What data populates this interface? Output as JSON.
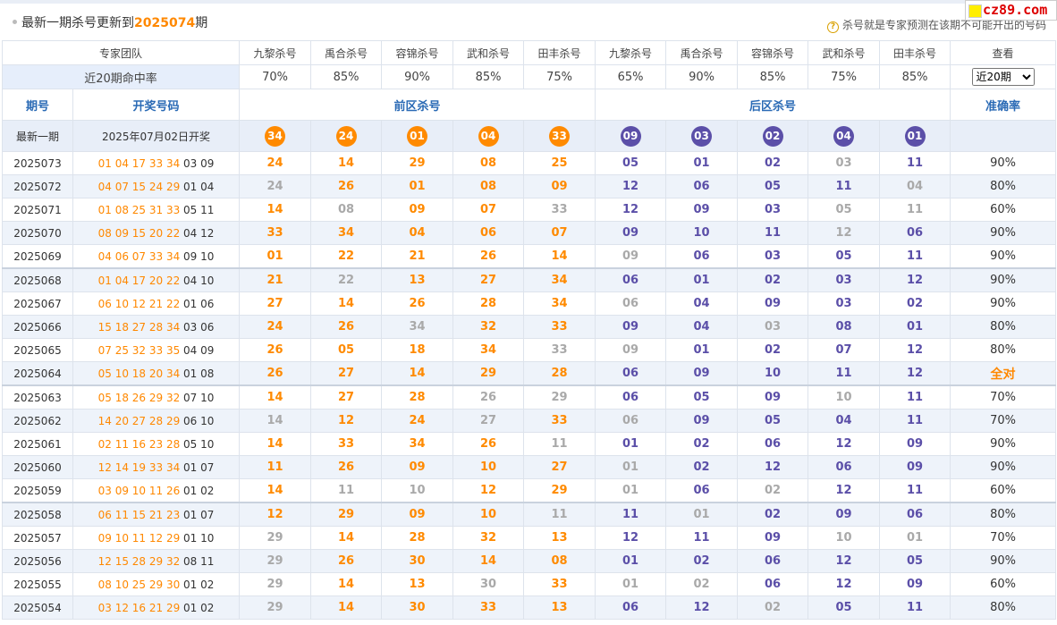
{
  "header": {
    "title_prefix": "最新一期杀号更新到",
    "issue": "2025074",
    "title_suffix": "期",
    "note_icon": "question-circle-icon",
    "note": "杀号就是专家预测在该期不可能开出的号码",
    "logo_text": "cz89.com"
  },
  "experts_label": "专家团队",
  "experts": [
    "九黎杀号",
    "禹合杀号",
    "容锦杀号",
    "武和杀号",
    "田丰杀号",
    "九黎杀号",
    "禹合杀号",
    "容锦杀号",
    "武和杀号",
    "田丰杀号"
  ],
  "view_label": "查看",
  "rate_label": "近20期命中率",
  "rates": [
    "70%",
    "85%",
    "90%",
    "85%",
    "75%",
    "65%",
    "90%",
    "85%",
    "75%",
    "85%"
  ],
  "period_select": "近20期",
  "columns": {
    "issue": "期号",
    "draw": "开奖号码",
    "front": "前区杀号",
    "back": "后区杀号",
    "accuracy": "准确率"
  },
  "latest": {
    "label": "最新一期",
    "date": "2025年07月02日开奖",
    "front": [
      "34",
      "24",
      "01",
      "04",
      "33"
    ],
    "back": [
      "09",
      "03",
      "02",
      "04",
      "01"
    ]
  },
  "colors": {
    "hit": "#ff8a00",
    "back_hit": "#5b4fa8",
    "miss": "#a9a9a9",
    "accent_blue": "#2a6ab5"
  },
  "rows": [
    {
      "issue": "2025073",
      "front_draw": "01 04 17 33 34",
      "back_draw": "03 09",
      "kills": [
        [
          "24",
          "o"
        ],
        [
          "14",
          "o"
        ],
        [
          "29",
          "o"
        ],
        [
          "08",
          "o"
        ],
        [
          "25",
          "o"
        ],
        [
          "05",
          "p"
        ],
        [
          "01",
          "p"
        ],
        [
          "02",
          "p"
        ],
        [
          "03",
          "g"
        ],
        [
          "11",
          "p"
        ]
      ],
      "acc": "90%"
    },
    {
      "issue": "2025072",
      "front_draw": "04 07 15 24 29",
      "back_draw": "01 04",
      "kills": [
        [
          "24",
          "g"
        ],
        [
          "26",
          "o"
        ],
        [
          "01",
          "o"
        ],
        [
          "08",
          "o"
        ],
        [
          "09",
          "o"
        ],
        [
          "12",
          "p"
        ],
        [
          "06",
          "p"
        ],
        [
          "05",
          "p"
        ],
        [
          "11",
          "p"
        ],
        [
          "04",
          "g"
        ]
      ],
      "acc": "80%"
    },
    {
      "issue": "2025071",
      "front_draw": "01 08 25 31 33",
      "back_draw": "05 11",
      "kills": [
        [
          "14",
          "o"
        ],
        [
          "08",
          "g"
        ],
        [
          "09",
          "o"
        ],
        [
          "07",
          "o"
        ],
        [
          "33",
          "g"
        ],
        [
          "12",
          "p"
        ],
        [
          "09",
          "p"
        ],
        [
          "03",
          "p"
        ],
        [
          "05",
          "g"
        ],
        [
          "11",
          "g"
        ]
      ],
      "acc": "60%"
    },
    {
      "issue": "2025070",
      "front_draw": "08 09 15 20 22",
      "back_draw": "04 12",
      "kills": [
        [
          "33",
          "o"
        ],
        [
          "34",
          "o"
        ],
        [
          "04",
          "o"
        ],
        [
          "06",
          "o"
        ],
        [
          "07",
          "o"
        ],
        [
          "09",
          "p"
        ],
        [
          "10",
          "p"
        ],
        [
          "11",
          "p"
        ],
        [
          "12",
          "g"
        ],
        [
          "06",
          "p"
        ]
      ],
      "acc": "90%"
    },
    {
      "issue": "2025069",
      "front_draw": "04 06 07 33 34",
      "back_draw": "09 10",
      "kills": [
        [
          "01",
          "o"
        ],
        [
          "22",
          "o"
        ],
        [
          "21",
          "o"
        ],
        [
          "26",
          "o"
        ],
        [
          "14",
          "o"
        ],
        [
          "09",
          "g"
        ],
        [
          "06",
          "p"
        ],
        [
          "03",
          "p"
        ],
        [
          "05",
          "p"
        ],
        [
          "11",
          "p"
        ]
      ],
      "acc": "90%"
    },
    {
      "issue": "2025068",
      "front_draw": "01 04 17 20 22",
      "back_draw": "04 10",
      "kills": [
        [
          "21",
          "o"
        ],
        [
          "22",
          "g"
        ],
        [
          "13",
          "o"
        ],
        [
          "27",
          "o"
        ],
        [
          "34",
          "o"
        ],
        [
          "06",
          "p"
        ],
        [
          "01",
          "p"
        ],
        [
          "02",
          "p"
        ],
        [
          "03",
          "p"
        ],
        [
          "12",
          "p"
        ]
      ],
      "acc": "90%"
    },
    {
      "issue": "2025067",
      "front_draw": "06 10 12 21 22",
      "back_draw": "01 06",
      "kills": [
        [
          "27",
          "o"
        ],
        [
          "14",
          "o"
        ],
        [
          "26",
          "o"
        ],
        [
          "28",
          "o"
        ],
        [
          "34",
          "o"
        ],
        [
          "06",
          "g"
        ],
        [
          "04",
          "p"
        ],
        [
          "09",
          "p"
        ],
        [
          "03",
          "p"
        ],
        [
          "02",
          "p"
        ]
      ],
      "acc": "90%"
    },
    {
      "issue": "2025066",
      "front_draw": "15 18 27 28 34",
      "back_draw": "03 06",
      "kills": [
        [
          "24",
          "o"
        ],
        [
          "26",
          "o"
        ],
        [
          "34",
          "g"
        ],
        [
          "32",
          "o"
        ],
        [
          "33",
          "o"
        ],
        [
          "09",
          "p"
        ],
        [
          "04",
          "p"
        ],
        [
          "03",
          "g"
        ],
        [
          "08",
          "p"
        ],
        [
          "01",
          "p"
        ]
      ],
      "acc": "80%"
    },
    {
      "issue": "2025065",
      "front_draw": "07 25 32 33 35",
      "back_draw": "04 09",
      "kills": [
        [
          "26",
          "o"
        ],
        [
          "05",
          "o"
        ],
        [
          "18",
          "o"
        ],
        [
          "34",
          "o"
        ],
        [
          "33",
          "g"
        ],
        [
          "09",
          "g"
        ],
        [
          "01",
          "p"
        ],
        [
          "02",
          "p"
        ],
        [
          "07",
          "p"
        ],
        [
          "12",
          "p"
        ]
      ],
      "acc": "80%"
    },
    {
      "issue": "2025064",
      "front_draw": "05 10 18 20 34",
      "back_draw": "01 08",
      "kills": [
        [
          "26",
          "o"
        ],
        [
          "27",
          "o"
        ],
        [
          "14",
          "o"
        ],
        [
          "29",
          "o"
        ],
        [
          "28",
          "o"
        ],
        [
          "06",
          "p"
        ],
        [
          "09",
          "p"
        ],
        [
          "10",
          "p"
        ],
        [
          "11",
          "p"
        ],
        [
          "12",
          "p"
        ]
      ],
      "acc": "全对"
    },
    {
      "issue": "2025063",
      "front_draw": "05 18 26 29 32",
      "back_draw": "07 10",
      "kills": [
        [
          "14",
          "o"
        ],
        [
          "27",
          "o"
        ],
        [
          "28",
          "o"
        ],
        [
          "26",
          "g"
        ],
        [
          "29",
          "g"
        ],
        [
          "06",
          "p"
        ],
        [
          "05",
          "p"
        ],
        [
          "09",
          "p"
        ],
        [
          "10",
          "g"
        ],
        [
          "11",
          "p"
        ]
      ],
      "acc": "70%"
    },
    {
      "issue": "2025062",
      "front_draw": "14 20 27 28 29",
      "back_draw": "06 10",
      "kills": [
        [
          "14",
          "g"
        ],
        [
          "12",
          "o"
        ],
        [
          "24",
          "o"
        ],
        [
          "27",
          "g"
        ],
        [
          "33",
          "o"
        ],
        [
          "06",
          "g"
        ],
        [
          "09",
          "p"
        ],
        [
          "05",
          "p"
        ],
        [
          "04",
          "p"
        ],
        [
          "11",
          "p"
        ]
      ],
      "acc": "70%"
    },
    {
      "issue": "2025061",
      "front_draw": "02 11 16 23 28",
      "back_draw": "05 10",
      "kills": [
        [
          "14",
          "o"
        ],
        [
          "33",
          "o"
        ],
        [
          "34",
          "o"
        ],
        [
          "26",
          "o"
        ],
        [
          "11",
          "g"
        ],
        [
          "01",
          "p"
        ],
        [
          "02",
          "p"
        ],
        [
          "06",
          "p"
        ],
        [
          "12",
          "p"
        ],
        [
          "09",
          "p"
        ]
      ],
      "acc": "90%"
    },
    {
      "issue": "2025060",
      "front_draw": "12 14 19 33 34",
      "back_draw": "01 07",
      "kills": [
        [
          "11",
          "o"
        ],
        [
          "26",
          "o"
        ],
        [
          "09",
          "o"
        ],
        [
          "10",
          "o"
        ],
        [
          "27",
          "o"
        ],
        [
          "01",
          "g"
        ],
        [
          "02",
          "p"
        ],
        [
          "12",
          "p"
        ],
        [
          "06",
          "p"
        ],
        [
          "09",
          "p"
        ]
      ],
      "acc": "90%"
    },
    {
      "issue": "2025059",
      "front_draw": "03 09 10 11 26",
      "back_draw": "01 02",
      "kills": [
        [
          "14",
          "o"
        ],
        [
          "11",
          "g"
        ],
        [
          "10",
          "g"
        ],
        [
          "12",
          "o"
        ],
        [
          "29",
          "o"
        ],
        [
          "01",
          "g"
        ],
        [
          "06",
          "p"
        ],
        [
          "02",
          "g"
        ],
        [
          "12",
          "p"
        ],
        [
          "11",
          "p"
        ]
      ],
      "acc": "60%"
    },
    {
      "issue": "2025058",
      "front_draw": "06 11 15 21 23",
      "back_draw": "01 07",
      "kills": [
        [
          "12",
          "o"
        ],
        [
          "29",
          "o"
        ],
        [
          "09",
          "o"
        ],
        [
          "10",
          "o"
        ],
        [
          "11",
          "g"
        ],
        [
          "11",
          "p"
        ],
        [
          "01",
          "g"
        ],
        [
          "02",
          "p"
        ],
        [
          "09",
          "p"
        ],
        [
          "06",
          "p"
        ]
      ],
      "acc": "80%"
    },
    {
      "issue": "2025057",
      "front_draw": "09 10 11 12 29",
      "back_draw": "01 10",
      "kills": [
        [
          "29",
          "g"
        ],
        [
          "14",
          "o"
        ],
        [
          "28",
          "o"
        ],
        [
          "32",
          "o"
        ],
        [
          "13",
          "o"
        ],
        [
          "12",
          "p"
        ],
        [
          "11",
          "p"
        ],
        [
          "09",
          "p"
        ],
        [
          "10",
          "g"
        ],
        [
          "01",
          "g"
        ]
      ],
      "acc": "70%"
    },
    {
      "issue": "2025056",
      "front_draw": "12 15 28 29 32",
      "back_draw": "08 11",
      "kills": [
        [
          "29",
          "g"
        ],
        [
          "26",
          "o"
        ],
        [
          "30",
          "o"
        ],
        [
          "14",
          "o"
        ],
        [
          "08",
          "o"
        ],
        [
          "01",
          "p"
        ],
        [
          "02",
          "p"
        ],
        [
          "06",
          "p"
        ],
        [
          "12",
          "p"
        ],
        [
          "05",
          "p"
        ]
      ],
      "acc": "90%"
    },
    {
      "issue": "2025055",
      "front_draw": "08 10 25 29 30",
      "back_draw": "01 02",
      "kills": [
        [
          "29",
          "g"
        ],
        [
          "14",
          "o"
        ],
        [
          "13",
          "o"
        ],
        [
          "30",
          "g"
        ],
        [
          "33",
          "o"
        ],
        [
          "01",
          "g"
        ],
        [
          "02",
          "g"
        ],
        [
          "06",
          "p"
        ],
        [
          "12",
          "p"
        ],
        [
          "09",
          "p"
        ]
      ],
      "acc": "60%"
    },
    {
      "issue": "2025054",
      "front_draw": "03 12 16 21 29",
      "back_draw": "01 02",
      "kills": [
        [
          "29",
          "g"
        ],
        [
          "14",
          "o"
        ],
        [
          "30",
          "o"
        ],
        [
          "33",
          "o"
        ],
        [
          "13",
          "o"
        ],
        [
          "06",
          "p"
        ],
        [
          "12",
          "p"
        ],
        [
          "02",
          "g"
        ],
        [
          "05",
          "p"
        ],
        [
          "11",
          "p"
        ]
      ],
      "acc": "80%"
    }
  ]
}
